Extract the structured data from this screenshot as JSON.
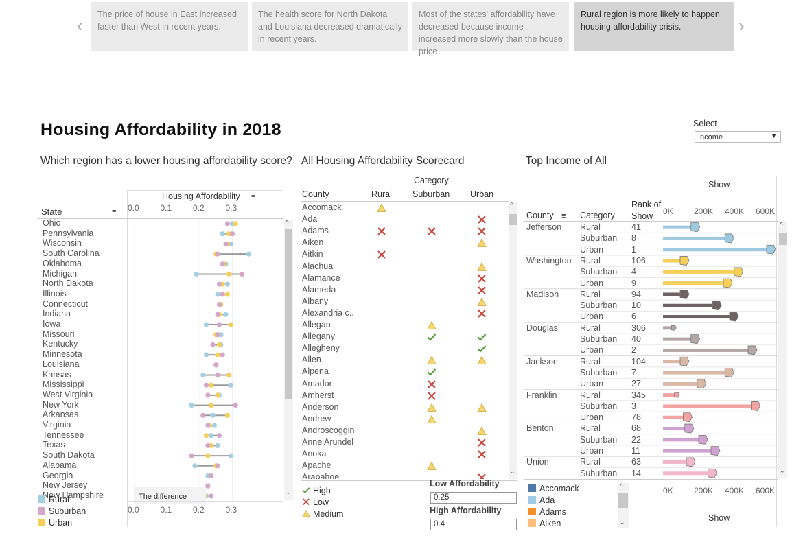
{
  "story": {
    "points": [
      "The price of house in East increased faster than West in recent years.",
      "The health score for North Dakota and Louisiana decreased dramatically in recent years.",
      "Most of the states' affordability have decreased because income increased more slowly than the house price",
      "Rural region is more likely to happen housing affordability crisis."
    ],
    "active_index": 3
  },
  "dashboard": {
    "title": "Housing Affordability in 2018",
    "select_label": "Select",
    "select_value": "Income"
  },
  "colors": {
    "rural": "#a6cee3",
    "suburban": "#d4a6c8",
    "urban": "#f5cf5a",
    "high": "#5a9e3f",
    "low": "#c8443b",
    "medium": "#f5d76e"
  },
  "dumbbell": {
    "title": "Which region has a lower housing affordability score?",
    "axis_title": "Housing Affordability",
    "column_header": "State",
    "ticks": [
      "0.0",
      "0.1",
      "0.2",
      "0.3"
    ],
    "tooltip": "The difference",
    "legend": [
      "Rural",
      "Suburban",
      "Urban"
    ],
    "states": [
      {
        "name": "Ohio",
        "rural": 0.3,
        "suburban": 0.285,
        "urban": 0.31
      },
      {
        "name": "Pennsylvania",
        "rural": 0.27,
        "suburban": 0.3,
        "urban": 0.29
      },
      {
        "name": "Wisconsin",
        "rural": 0.295,
        "suburban": 0.28,
        "urban": 0.285
      },
      {
        "name": "South Carolina",
        "rural": 0.35,
        "suburban": 0.255,
        "urban": 0.25
      },
      {
        "name": "Oklahoma",
        "rural": 0.28,
        "suburban": 0.27,
        "urban": 0.275
      },
      {
        "name": "Michigan",
        "rural": 0.19,
        "suburban": 0.33,
        "urban": 0.29
      },
      {
        "name": "North Dakota",
        "rural": 0.285,
        "suburban": 0.26,
        "urban": 0.27
      },
      {
        "name": "Illinois",
        "rural": 0.255,
        "suburban": 0.27,
        "urban": 0.285
      },
      {
        "name": "Connecticut",
        "rural": 0.265,
        "suburban": 0.26,
        "urban": 0.265
      },
      {
        "name": "Indiana",
        "rural": 0.28,
        "suburban": 0.255,
        "urban": 0.26
      },
      {
        "name": "Iowa",
        "rural": 0.22,
        "suburban": 0.26,
        "urban": 0.295
      },
      {
        "name": "Missouri",
        "rural": 0.265,
        "suburban": 0.255,
        "urban": 0.25
      },
      {
        "name": "Kentucky",
        "rural": 0.265,
        "suburban": 0.24,
        "urban": 0.26
      },
      {
        "name": "Minnesota",
        "rural": 0.22,
        "suburban": 0.27,
        "urban": 0.255
      },
      {
        "name": "Louisiana",
        "rural": 0.25,
        "suburban": 0.25,
        "urban": 0.25
      },
      {
        "name": "Kansas",
        "rural": 0.21,
        "suburban": 0.255,
        "urban": 0.29
      },
      {
        "name": "Mississippi",
        "rural": 0.295,
        "suburban": 0.22,
        "urban": 0.235
      },
      {
        "name": "West Virginia",
        "rural": 0.26,
        "suburban": 0.225,
        "urban": 0.255
      },
      {
        "name": "New York",
        "rural": 0.175,
        "suburban": 0.31,
        "urban": 0.235
      },
      {
        "name": "Arkansas",
        "rural": 0.24,
        "suburban": 0.21,
        "urban": 0.285
      },
      {
        "name": "Virginia",
        "rural": 0.245,
        "suburban": 0.225,
        "urban": 0.23
      },
      {
        "name": "Tennessee",
        "rural": 0.235,
        "suburban": 0.26,
        "urban": 0.22
      },
      {
        "name": "Texas",
        "rural": 0.255,
        "suburban": 0.225,
        "urban": 0.235
      },
      {
        "name": "South Dakota",
        "rural": 0.295,
        "suburban": 0.175,
        "urban": 0.225
      },
      {
        "name": "Alabama",
        "rural": 0.185,
        "suburban": 0.255,
        "urban": 0.25
      },
      {
        "name": "Georgia",
        "rural": 0.225,
        "suburban": 0.235,
        "urban": 0.235
      },
      {
        "name": "New Jersey",
        "rural": 0.225,
        "suburban": 0.225,
        "urban": 0.225
      },
      {
        "name": "New Hampshire",
        "rural": 0.22,
        "suburban": 0.235,
        "urban": 0.215
      }
    ]
  },
  "scorecard": {
    "title": "All Housing Affordability Scorecard",
    "category_header": "Category",
    "county_header": "County",
    "columns": [
      "Rural",
      "Suburban",
      "Urban"
    ],
    "rows": [
      {
        "county": "Accomack",
        "cells": [
          "M",
          "",
          ""
        ]
      },
      {
        "county": "Ada",
        "cells": [
          "",
          "",
          "L"
        ]
      },
      {
        "county": "Adams",
        "cells": [
          "L",
          "L",
          "L"
        ]
      },
      {
        "county": "Aiken",
        "cells": [
          "",
          "",
          "M"
        ]
      },
      {
        "county": "Aitkin",
        "cells": [
          "L",
          "",
          ""
        ]
      },
      {
        "county": "Alachua",
        "cells": [
          "",
          "",
          "M"
        ]
      },
      {
        "county": "Alamance",
        "cells": [
          "",
          "",
          "L"
        ]
      },
      {
        "county": "Alameda",
        "cells": [
          "",
          "",
          "L"
        ]
      },
      {
        "county": "Albany",
        "cells": [
          "",
          "",
          "M"
        ]
      },
      {
        "county": "Alexandria c..",
        "cells": [
          "",
          "",
          "L"
        ]
      },
      {
        "county": "Allegan",
        "cells": [
          "",
          "M",
          ""
        ]
      },
      {
        "county": "Allegany",
        "cells": [
          "",
          "H",
          "H"
        ]
      },
      {
        "county": "Allegheny",
        "cells": [
          "",
          "",
          "H"
        ]
      },
      {
        "county": "Allen",
        "cells": [
          "",
          "M",
          "M"
        ]
      },
      {
        "county": "Alpena",
        "cells": [
          "",
          "H",
          ""
        ]
      },
      {
        "county": "Amador",
        "cells": [
          "",
          "L",
          ""
        ]
      },
      {
        "county": "Amherst",
        "cells": [
          "",
          "L",
          ""
        ]
      },
      {
        "county": "Anderson",
        "cells": [
          "",
          "M",
          "M"
        ]
      },
      {
        "county": "Andrew",
        "cells": [
          "",
          "M",
          ""
        ]
      },
      {
        "county": "Androscoggin",
        "cells": [
          "",
          "",
          "M"
        ]
      },
      {
        "county": "Anne Arundel",
        "cells": [
          "",
          "",
          "L"
        ]
      },
      {
        "county": "Anoka",
        "cells": [
          "",
          "",
          "L"
        ]
      },
      {
        "county": "Apache",
        "cells": [
          "",
          "M",
          ""
        ]
      },
      {
        "county": "Arapahoe",
        "cells": [
          "",
          "",
          "L"
        ]
      }
    ],
    "legend": [
      {
        "key": "H",
        "label": "High"
      },
      {
        "key": "L",
        "label": "Low"
      },
      {
        "key": "M",
        "label": "Medium"
      }
    ],
    "low_label": "Low Affordability",
    "low_value": "0.25",
    "high_label": "High Affordability",
    "high_value": "0.4"
  },
  "income": {
    "title": "Top Income of All",
    "axis_title": "Show",
    "headers": {
      "county": "County",
      "category": "Category",
      "rank": "Rank of Show"
    },
    "ticks": [
      "0K",
      "200K",
      "400K",
      "600K"
    ],
    "groups": [
      {
        "county": "Jefferson",
        "color": "#9ecae1",
        "rows": [
          {
            "cat": "Rural",
            "rank": "41",
            "value": 210000
          },
          {
            "cat": "Suburban",
            "rank": "8",
            "value": 430000
          },
          {
            "cat": "Urban",
            "rank": "1",
            "value": 700000
          }
        ]
      },
      {
        "county": "Washington",
        "color": "#f5cf5a",
        "rows": [
          {
            "cat": "Rural",
            "rank": "106",
            "value": 140000
          },
          {
            "cat": "Suburban",
            "rank": "4",
            "value": 490000
          },
          {
            "cat": "Urban",
            "rank": "9",
            "value": 420000
          }
        ]
      },
      {
        "county": "Madison",
        "color": "#6e6264",
        "rows": [
          {
            "cat": "Rural",
            "rank": "94",
            "value": 140000
          },
          {
            "cat": "Suburban",
            "rank": "10",
            "value": 350000
          },
          {
            "cat": "Urban",
            "rank": "6",
            "value": 460000
          }
        ]
      },
      {
        "county": "Douglas",
        "color": "#b4a8a6",
        "rows": [
          {
            "cat": "Rural",
            "rank": "306",
            "value": 70000
          },
          {
            "cat": "Suburban",
            "rank": "40",
            "value": 210000
          },
          {
            "cat": "Urban",
            "rank": "2",
            "value": 580000
          }
        ]
      },
      {
        "county": "Jackson",
        "color": "#d9b8a6",
        "rows": [
          {
            "cat": "Rural",
            "rank": "104",
            "value": 140000
          },
          {
            "cat": "Suburban",
            "rank": "7",
            "value": 430000
          },
          {
            "cat": "Urban",
            "rank": "27",
            "value": 250000
          }
        ]
      },
      {
        "county": "Franklin",
        "color": "#f4a3a3",
        "rows": [
          {
            "cat": "Rural",
            "rank": "345",
            "value": 90000
          },
          {
            "cat": "Suburban",
            "rank": "3",
            "value": 600000
          },
          {
            "cat": "Urban",
            "rank": "78",
            "value": 160000
          }
        ]
      },
      {
        "county": "Benton",
        "color": "#cfa3cf",
        "rows": [
          {
            "cat": "Rural",
            "rank": "68",
            "value": 170000
          },
          {
            "cat": "Suburban",
            "rank": "22",
            "value": 260000
          },
          {
            "cat": "Urban",
            "rank": "11",
            "value": 340000
          }
        ]
      },
      {
        "county": "Union",
        "color": "#f2b6cb",
        "rows": [
          {
            "cat": "Rural",
            "rank": "63",
            "value": 180000
          },
          {
            "cat": "Suburban",
            "rank": "14",
            "value": 320000
          }
        ]
      }
    ],
    "legend": [
      {
        "label": "Accomack",
        "color": "#4e79a7"
      },
      {
        "label": "Ada",
        "color": "#a0cbe8"
      },
      {
        "label": "Adams",
        "color": "#f28e2b"
      },
      {
        "label": "Aiken",
        "color": "#ffbe7d"
      }
    ]
  }
}
